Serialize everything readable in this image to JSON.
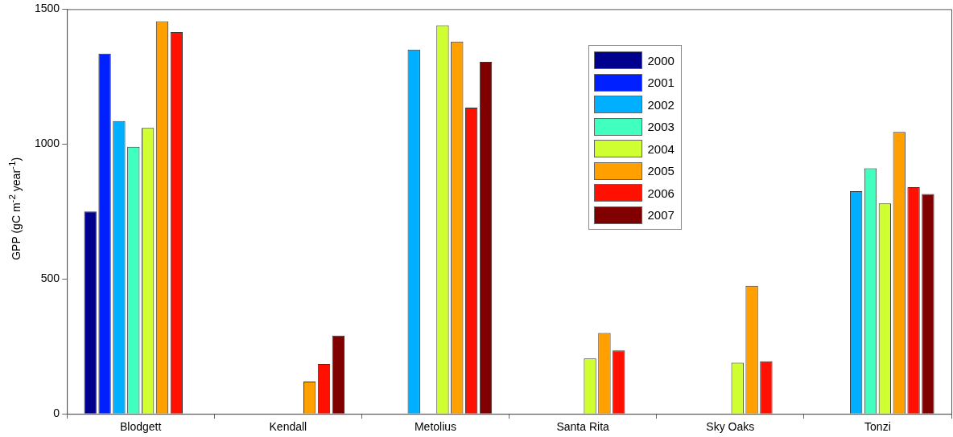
{
  "chart_data": {
    "type": "bar",
    "ylabel": "GPP (gC m$^{-2}$ year$^{-1}$)",
    "categories": [
      "Blodgett",
      "Kendall",
      "Metolius",
      "Santa Rita",
      "Sky Oaks",
      "Tonzi"
    ],
    "series": [
      {
        "name": "2000",
        "color": "#00008f",
        "values": [
          750,
          null,
          null,
          null,
          null,
          null
        ]
      },
      {
        "name": "2001",
        "color": "#0020ff",
        "values": [
          1335,
          null,
          null,
          null,
          null,
          null
        ]
      },
      {
        "name": "2002",
        "color": "#00afff",
        "values": [
          1085,
          null,
          1350,
          null,
          null,
          825
        ]
      },
      {
        "name": "2003",
        "color": "#40ffbf",
        "values": [
          990,
          null,
          null,
          null,
          null,
          910
        ]
      },
      {
        "name": "2004",
        "color": "#cfff30",
        "values": [
          1060,
          null,
          1440,
          205,
          190,
          780
        ]
      },
      {
        "name": "2005",
        "color": "#ff9f00",
        "values": [
          1455,
          120,
          1380,
          300,
          475,
          1045
        ]
      },
      {
        "name": "2006",
        "color": "#ff1000",
        "values": [
          1415,
          185,
          1135,
          235,
          195,
          840
        ]
      },
      {
        "name": "2007",
        "color": "#800000",
        "values": [
          null,
          290,
          1305,
          null,
          null,
          815
        ]
      }
    ],
    "ylim": [
      0,
      1500
    ],
    "yticks": [
      0,
      500,
      1000,
      1500
    ],
    "grid": false,
    "legend": "top"
  }
}
